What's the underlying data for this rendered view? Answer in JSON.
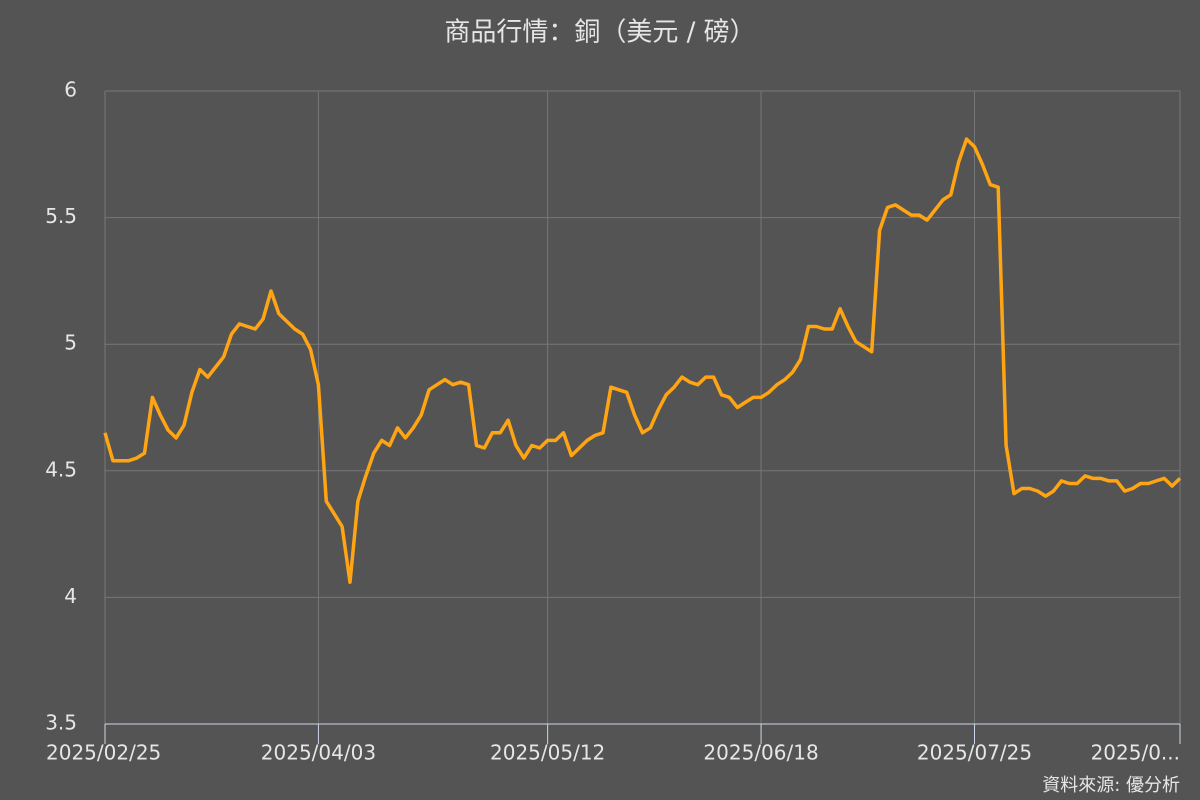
{
  "chart_data": {
    "type": "line",
    "title": "商品行情：銅（美元 / 磅）",
    "source": "資料來源: 優分析",
    "categories": [
      "2025/02/25",
      null,
      null,
      null,
      null,
      null,
      null,
      null,
      null,
      null,
      null,
      null,
      null,
      null,
      null,
      null,
      null,
      null,
      null,
      null,
      null,
      null,
      null,
      null,
      null,
      null,
      null,
      "2025/04/03",
      null,
      null,
      null,
      null,
      null,
      null,
      null,
      null,
      null,
      null,
      null,
      null,
      null,
      null,
      null,
      null,
      null,
      null,
      null,
      null,
      null,
      null,
      null,
      null,
      null,
      null,
      null,
      null,
      "2025/05/12",
      null,
      null,
      null,
      null,
      null,
      null,
      null,
      null,
      null,
      null,
      null,
      null,
      null,
      null,
      null,
      null,
      null,
      null,
      null,
      null,
      null,
      null,
      null,
      null,
      null,
      null,
      "2025/06/18",
      null,
      null,
      null,
      null,
      null,
      null,
      null,
      null,
      null,
      null,
      null,
      null,
      null,
      null,
      null,
      null,
      null,
      null,
      null,
      null,
      null,
      null,
      null,
      null,
      null,
      null,
      "2025/07/25",
      null,
      null,
      null,
      null,
      null,
      null,
      null,
      null,
      null,
      null,
      null,
      null,
      null,
      null,
      null,
      null,
      null,
      null,
      null,
      null,
      null,
      null,
      null,
      null,
      null,
      "2025/0..."
    ],
    "series": [
      {
        "name": "銅",
        "color": "#ffa514",
        "values": [
          4.65,
          4.54,
          4.54,
          4.54,
          4.55,
          4.57,
          4.79,
          4.72,
          4.66,
          4.63,
          4.68,
          4.81,
          4.9,
          4.87,
          4.91,
          4.95,
          5.04,
          5.08,
          5.07,
          5.06,
          5.1,
          5.21,
          5.12,
          5.09,
          5.06,
          5.04,
          4.98,
          4.84,
          4.38,
          4.33,
          4.28,
          4.06,
          4.38,
          4.48,
          4.57,
          4.62,
          4.6,
          4.67,
          4.63,
          4.67,
          4.72,
          4.82,
          4.84,
          4.86,
          4.84,
          4.85,
          4.84,
          4.6,
          4.59,
          4.65,
          4.65,
          4.7,
          4.6,
          4.55,
          4.6,
          4.59,
          4.62,
          4.62,
          4.65,
          4.56,
          4.59,
          4.62,
          4.64,
          4.65,
          4.83,
          4.82,
          4.81,
          4.72,
          4.65,
          4.67,
          4.74,
          4.8,
          4.83,
          4.87,
          4.85,
          4.84,
          4.87,
          4.87,
          4.8,
          4.79,
          4.75,
          4.77,
          4.79,
          4.79,
          4.81,
          4.84,
          4.86,
          4.89,
          4.94,
          5.07,
          5.07,
          5.06,
          5.06,
          5.14,
          5.07,
          5.01,
          4.99,
          4.97,
          5.45,
          5.54,
          5.55,
          5.53,
          5.51,
          5.51,
          5.49,
          5.53,
          5.57,
          5.59,
          5.72,
          5.81,
          5.78,
          5.71,
          5.63,
          5.62,
          4.6,
          4.41,
          4.43,
          4.43,
          4.42,
          4.4,
          4.42,
          4.46,
          4.45,
          4.45,
          4.48,
          4.47,
          4.47,
          4.46,
          4.46,
          4.42,
          4.43,
          4.45,
          4.45,
          4.46,
          4.47,
          4.44,
          4.47
        ]
      }
    ],
    "ylim": [
      3.5,
      6
    ],
    "yticks": [
      3.5,
      4,
      4.5,
      5,
      5.5,
      6
    ],
    "grid": true
  }
}
